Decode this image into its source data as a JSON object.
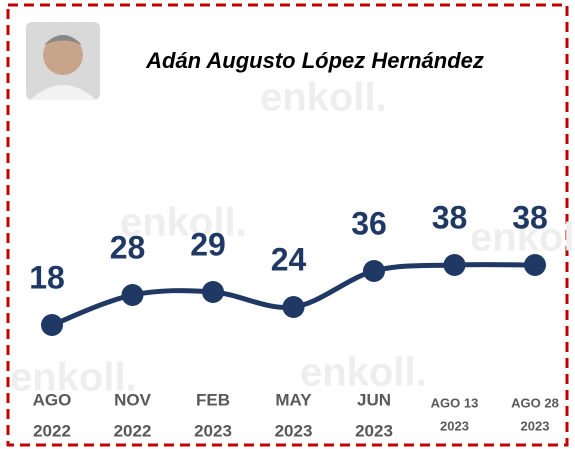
{
  "chart_data": {
    "type": "line",
    "title": "Adán Augusto López Hernández",
    "watermark": "enkoll.",
    "categories": [
      [
        "AGO",
        "2022"
      ],
      [
        "NOV",
        "2022"
      ],
      [
        "FEB",
        "2023"
      ],
      [
        "MAY",
        "2023"
      ],
      [
        "JUN",
        "2023"
      ],
      [
        "AGO 13",
        "2023"
      ],
      [
        "AGO 28",
        "2023"
      ]
    ],
    "values": [
      18,
      28,
      29,
      24,
      36,
      38,
      38
    ],
    "color": "#1f3864"
  }
}
